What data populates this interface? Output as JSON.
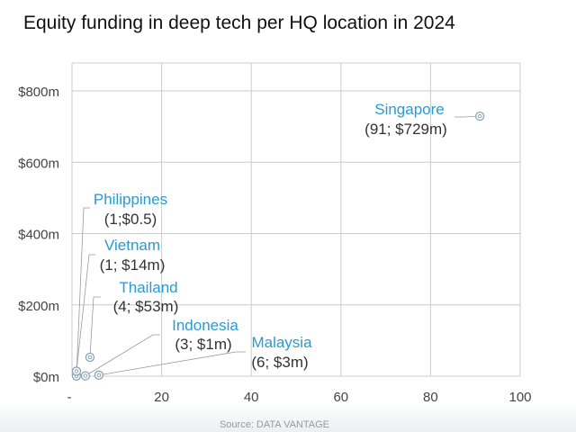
{
  "chart_data": {
    "type": "scatter",
    "title": "Equity funding in deep tech per HQ location in 2024",
    "xlabel": "",
    "ylabel": "",
    "xlim": [
      0,
      100
    ],
    "ylim": [
      0,
      800
    ],
    "x_ticks": [
      0,
      20,
      40,
      60,
      80,
      100
    ],
    "x_tick_labels": [
      "-",
      "20",
      "40",
      "60",
      "80",
      "100"
    ],
    "y_ticks": [
      0,
      200,
      400,
      600,
      800
    ],
    "y_tick_labels": [
      "$0m",
      "$200m",
      "$400m",
      "$600m",
      "$800m"
    ],
    "grid": true,
    "points": [
      {
        "name": "Singapore",
        "label": "(91; $729m)",
        "x": 91,
        "y": 729
      },
      {
        "name": "Philippines",
        "label": "(1;$0.5)",
        "x": 1,
        "y": 0.5
      },
      {
        "name": "Vietnam",
        "label": "(1; $14m)",
        "x": 1,
        "y": 14
      },
      {
        "name": "Thailand",
        "label": "(4; $53m)",
        "x": 4,
        "y": 53
      },
      {
        "name": "Indonesia",
        "label": "(3; $1m)",
        "x": 3,
        "y": 1
      },
      {
        "name": "Malaysia",
        "label": "(6; $3m)",
        "x": 6,
        "y": 3
      }
    ],
    "colors": {
      "label": "#2a9ad0",
      "point": "#8aa4b4",
      "grid": "#cccccc"
    }
  },
  "source": "Source: DATA VANTAGE"
}
